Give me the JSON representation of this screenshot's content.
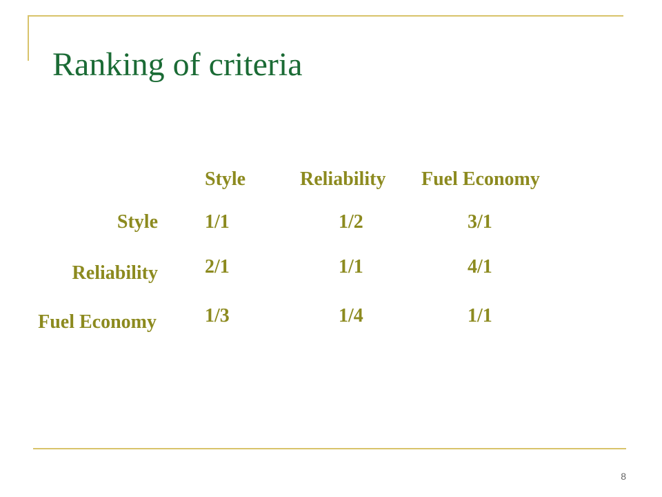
{
  "slide": {
    "title": "Ranking of criteria",
    "page_number": "8"
  },
  "matrix": {
    "column_headers": [
      "Style",
      "Reliability",
      "Fuel Economy"
    ],
    "row_headers": [
      "Style",
      "Reliability",
      "Fuel Economy"
    ],
    "rows": [
      [
        "1/1",
        "1/2",
        "3/1"
      ],
      [
        "2/1",
        "1/1",
        "4/1"
      ],
      [
        "1/3",
        "1/4",
        "1/1"
      ]
    ]
  },
  "colors": {
    "title": "#1b6b35",
    "table_text": "#8c8a1f",
    "rule_lines": "#d8c36a"
  }
}
